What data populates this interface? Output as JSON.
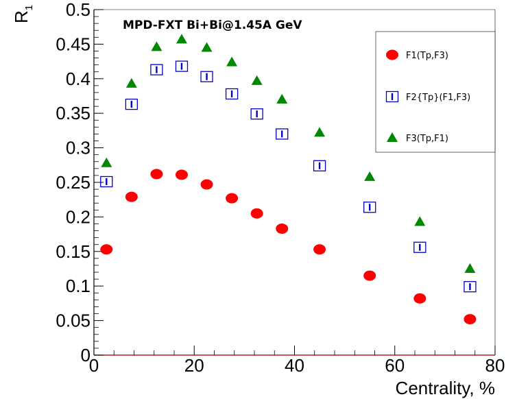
{
  "chart_data": {
    "type": "scatter",
    "title": "MPD-FXT Bi+Bi@1.45A GeV",
    "xlabel": "Centrality, %",
    "ylabel_main": "R",
    "ylabel_sub": "1",
    "xlim": [
      0,
      80
    ],
    "ylim": [
      0,
      0.5
    ],
    "x_ticks": [
      0,
      20,
      40,
      60,
      80
    ],
    "x_tick_labels": [
      "0",
      "20",
      "40",
      "60",
      "80"
    ],
    "y_ticks": [
      0,
      0.05,
      0.1,
      0.15,
      0.2,
      0.25,
      0.3,
      0.35,
      0.4,
      0.45,
      0.5
    ],
    "y_tick_labels": [
      "0",
      "0.05",
      "0.1",
      "0.15",
      "0.2",
      "0.25",
      "0.3",
      "0.35",
      "0.4",
      "0.45",
      "0.5"
    ],
    "grid": false,
    "legend_position": "top-right",
    "series": [
      {
        "name": "F1(Tp,F3)",
        "marker": "circle",
        "color": "#ff0000",
        "x": [
          2.5,
          7.5,
          12.5,
          17.5,
          22.5,
          27.5,
          32.5,
          37.5,
          45,
          55,
          65,
          75
        ],
        "y": [
          0.153,
          0.229,
          0.262,
          0.261,
          0.247,
          0.227,
          0.205,
          0.183,
          0.153,
          0.115,
          0.082,
          0.052
        ]
      },
      {
        "name": "F2{Tp}(F1,F3)",
        "marker": "open-square",
        "color": "#0000cc",
        "x": [
          2.5,
          7.5,
          12.5,
          17.5,
          22.5,
          27.5,
          32.5,
          37.5,
          45,
          55,
          65,
          75
        ],
        "y": [
          0.251,
          0.363,
          0.413,
          0.418,
          0.403,
          0.378,
          0.349,
          0.32,
          0.274,
          0.214,
          0.156,
          0.099
        ]
      },
      {
        "name": "F3(Tp,F1)",
        "marker": "triangle",
        "color": "#008800",
        "x": [
          2.5,
          7.5,
          12.5,
          17.5,
          22.5,
          27.5,
          32.5,
          37.5,
          45,
          55,
          65,
          75
        ],
        "y": [
          0.278,
          0.393,
          0.446,
          0.457,
          0.445,
          0.424,
          0.397,
          0.37,
          0.322,
          0.258,
          0.193,
          0.125
        ]
      }
    ]
  }
}
